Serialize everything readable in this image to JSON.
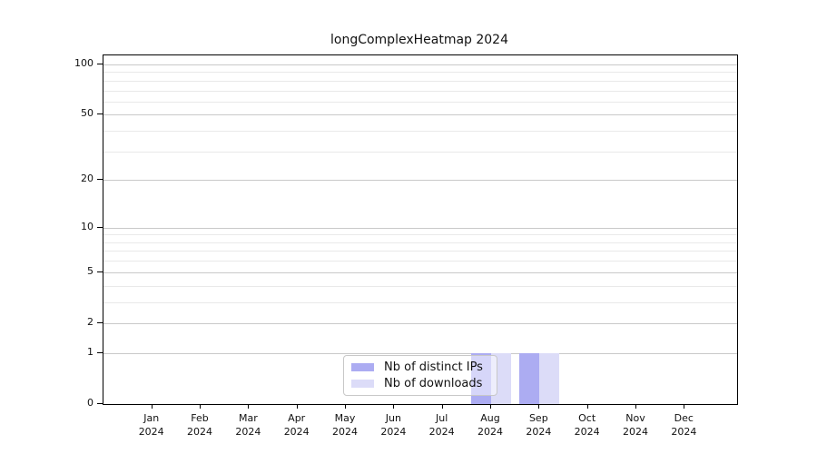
{
  "chart_data": {
    "type": "bar",
    "title": "longComplexHeatmap 2024",
    "categories": [
      "Jan",
      "Feb",
      "Mar",
      "Apr",
      "May",
      "Jun",
      "Jul",
      "Aug",
      "Sep",
      "Oct",
      "Nov",
      "Dec"
    ],
    "category_year_label": "2024",
    "series": [
      {
        "name": "Nb of distinct IPs",
        "color": "#acacf2",
        "values": [
          0,
          0,
          0,
          0,
          0,
          0,
          0,
          1,
          1,
          0,
          0,
          0
        ]
      },
      {
        "name": "Nb of downloads",
        "color": "#dcdcf8",
        "values": [
          0,
          0,
          0,
          0,
          0,
          0,
          0,
          1,
          1,
          0,
          0,
          0
        ]
      }
    ],
    "xlabel": "",
    "ylabel": "",
    "y_axis": {
      "scale": "log1p",
      "range": [
        0,
        100
      ],
      "major_ticks": [
        0,
        1,
        2,
        5,
        10,
        20,
        50,
        100
      ],
      "minor_ticks": [
        3,
        4,
        6,
        7,
        8,
        9,
        30,
        40,
        60,
        70,
        80,
        90
      ]
    },
    "grid": {
      "major_color": "#c9c9c9",
      "minor_color": "#e9e9e9",
      "axis_color": "#000000"
    },
    "legend_position": "bottom-center"
  }
}
